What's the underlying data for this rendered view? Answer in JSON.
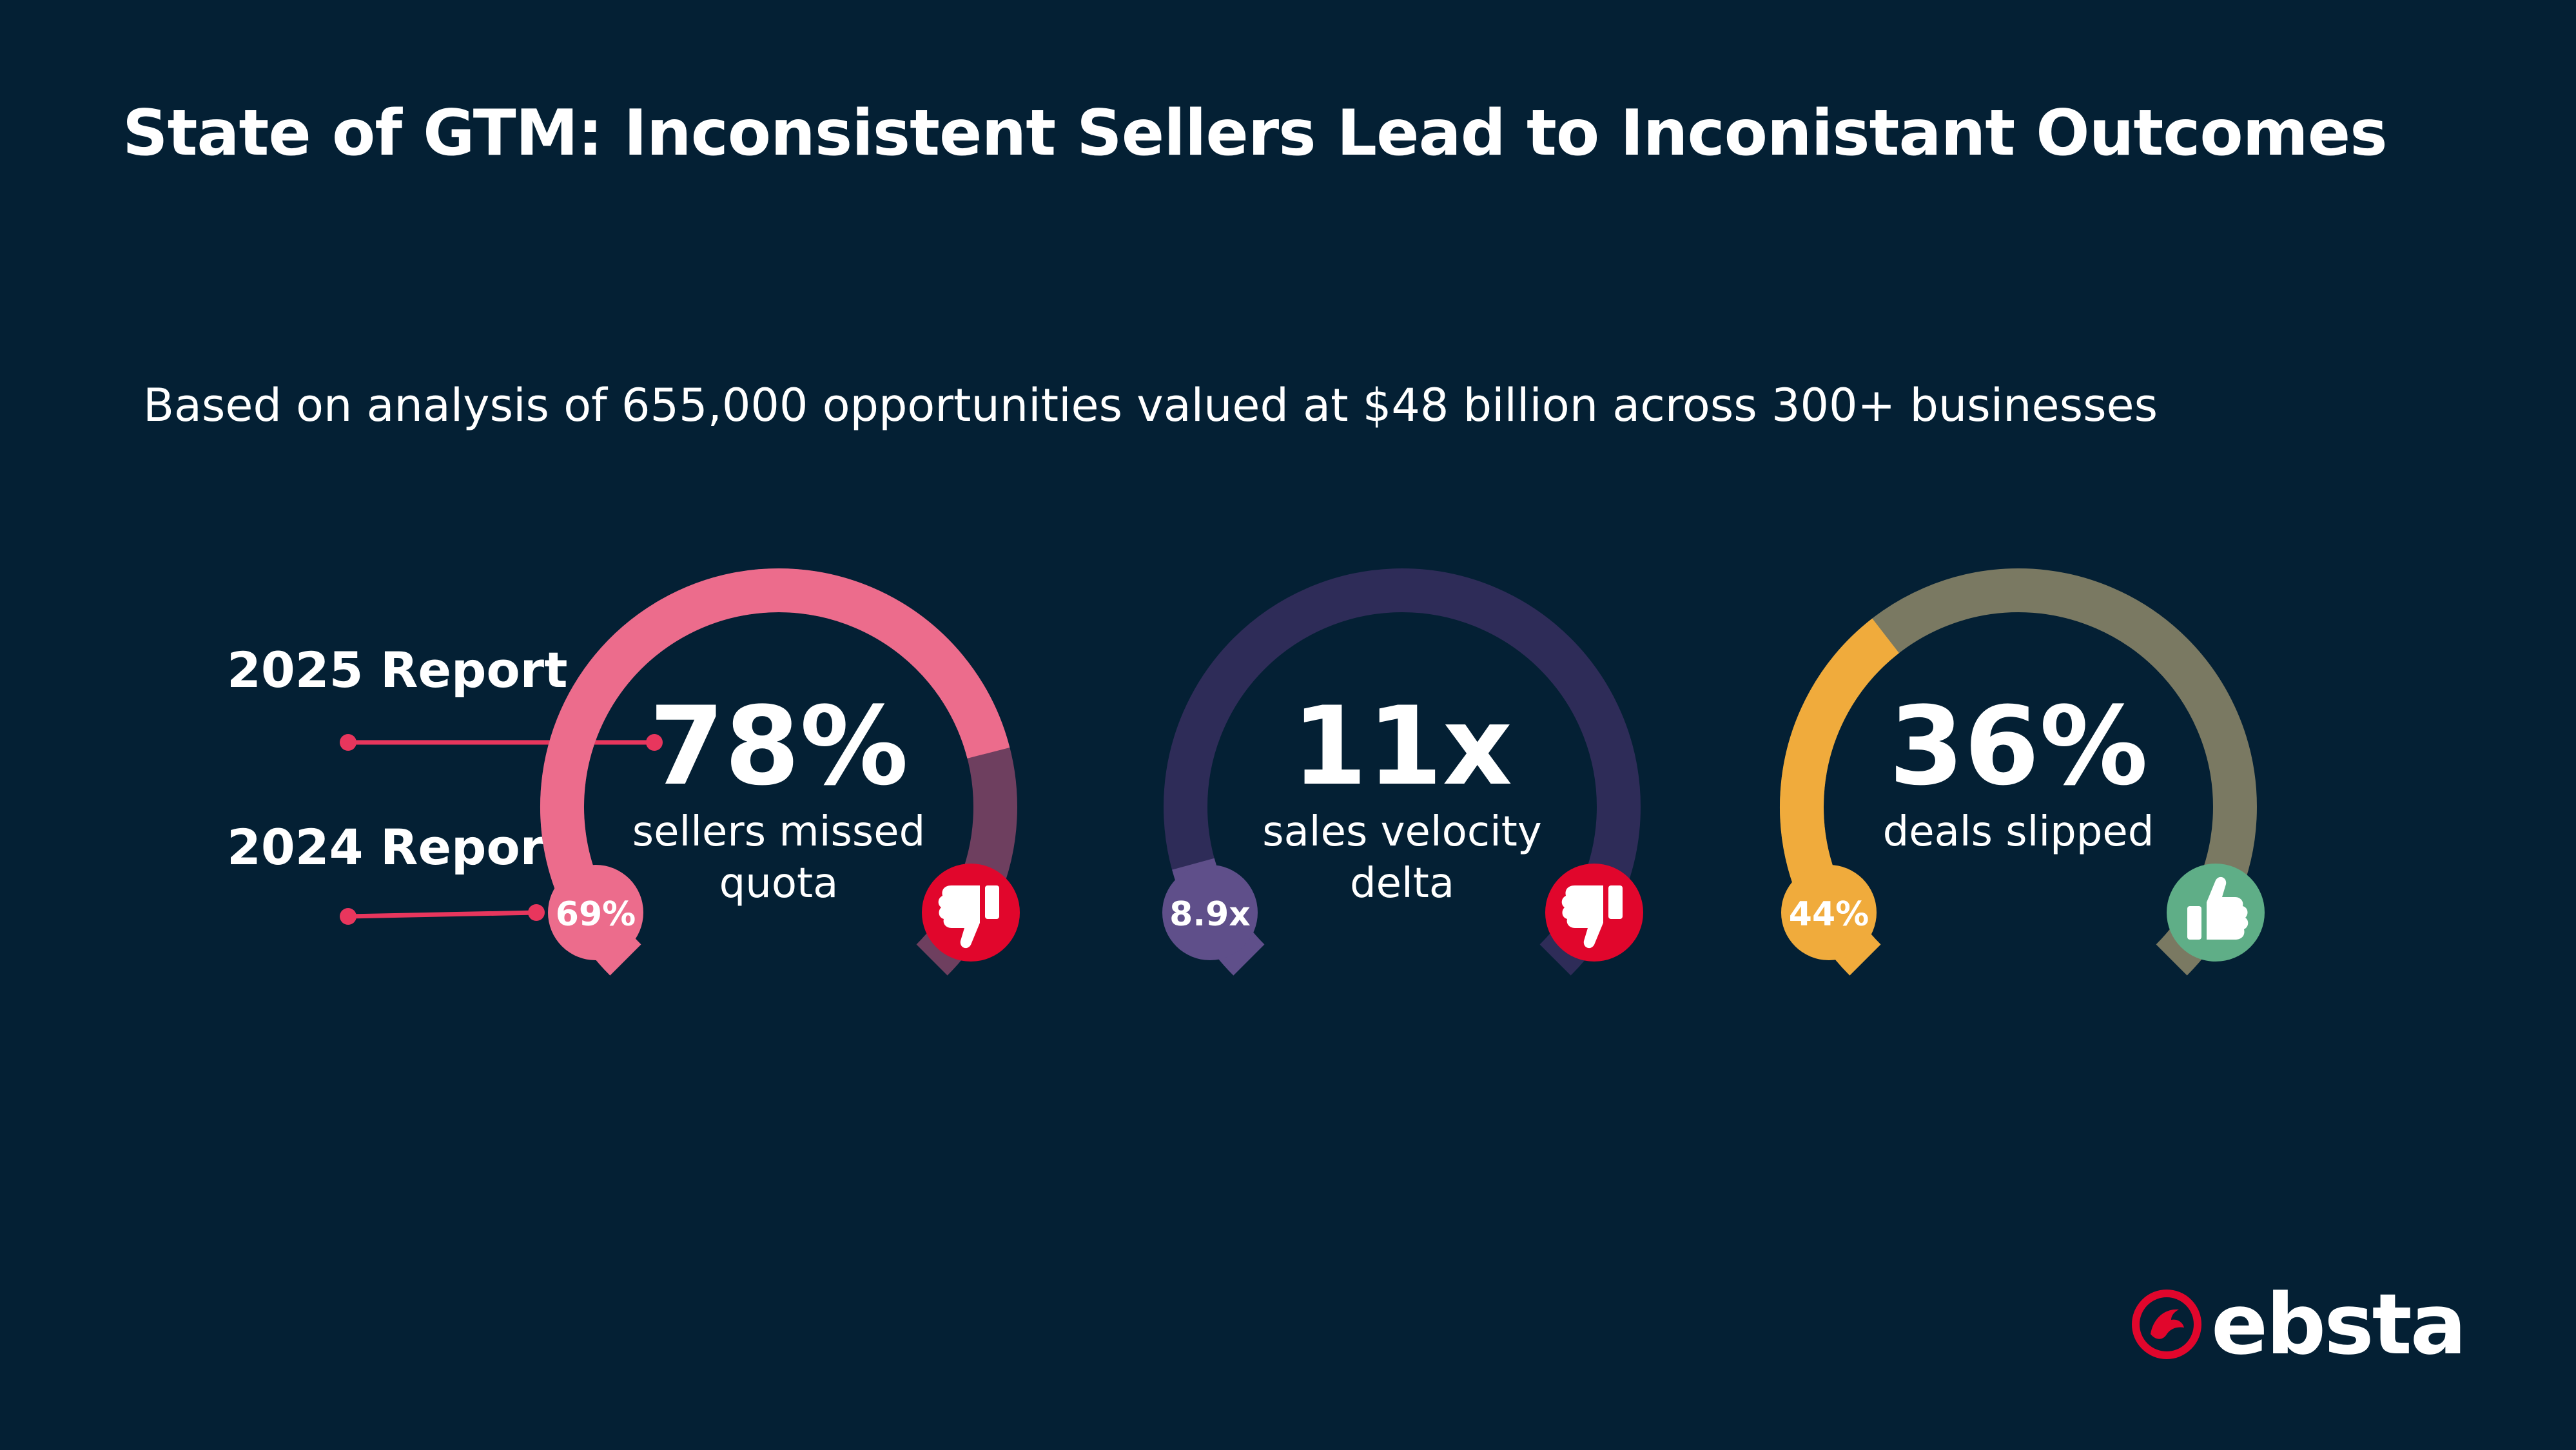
{
  "header": {
    "title": "State of GTM: Inconsistent Sellers Lead to Inconistant Outcomes",
    "subtitle": "Based on analysis of 655,000 opportunities valued at $48 billion across 300+ businesses"
  },
  "legend": {
    "current_label": "2025 Report",
    "previous_label": "2024 Report",
    "line_color": "#e8365d"
  },
  "chart_data": {
    "type": "gauge",
    "gauge_scale_max": 100,
    "gauges": [
      {
        "current_value": "78%",
        "current_fraction": 0.78,
        "caption_line1": "sellers missed",
        "caption_line2": "quota",
        "previous_value": "69%",
        "previous_fraction": 0.69,
        "fill_color": "#ec6c8c",
        "remainder_color": "#6e3f5f",
        "badge_color": "#ec6c8c",
        "outcome_icon": "thumbs-down-icon",
        "outcome_color": "#e1062c"
      },
      {
        "current_value": "11x",
        "current_fraction": 0.89,
        "caption_line1": "sales velocity",
        "caption_line2": "delta",
        "previous_value": "8.9x",
        "previous_fraction": 0.11,
        "fill_color": "#2e2c58",
        "remainder_color": "#2e2c58",
        "previous_segment_color": "#5f4f8a",
        "badge_color": "#5f4f8a",
        "outcome_icon": "thumbs-down-icon",
        "outcome_color": "#e1062c"
      },
      {
        "current_value": "36%",
        "current_fraction": 0.36,
        "caption_line1": "deals slipped",
        "caption_line2": "",
        "previous_value": "44%",
        "previous_fraction": 0.44,
        "fill_color": "#f0ab3c",
        "remainder_color": "#7a7962",
        "badge_color": "#f0ab3c",
        "outcome_icon": "thumbs-up-icon",
        "outcome_color": "#5fae87"
      }
    ]
  },
  "brand": {
    "logo_text": "ebsta",
    "logo_icon": "ebsta-bird-icon",
    "logo_color": "#e1062c"
  }
}
